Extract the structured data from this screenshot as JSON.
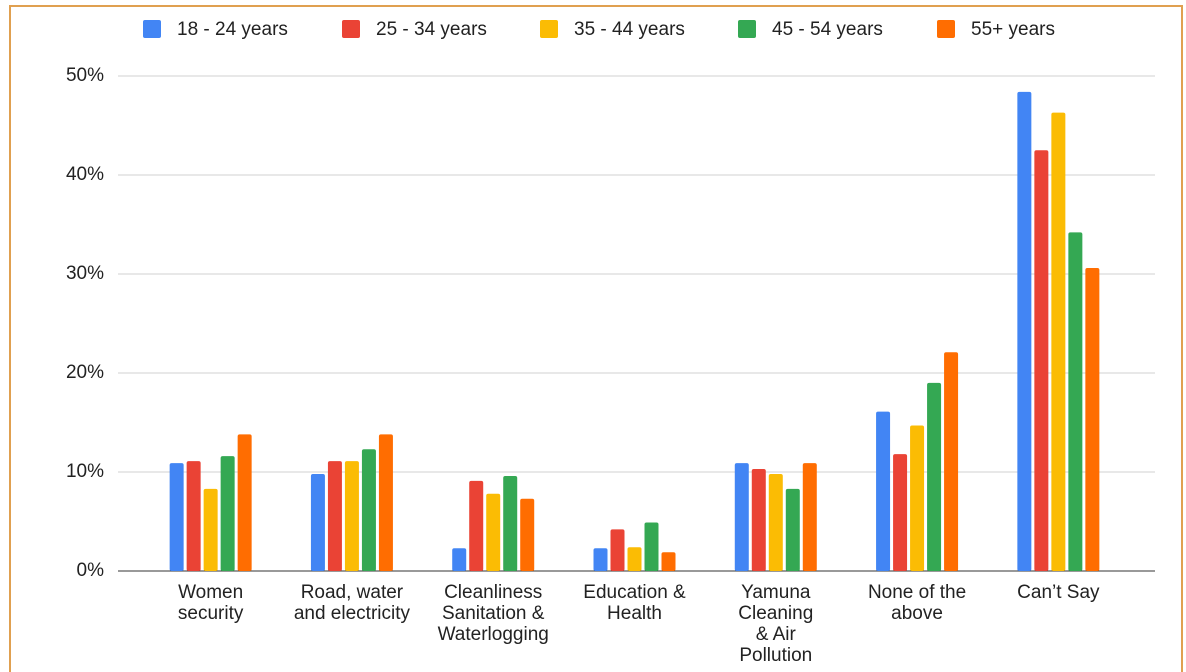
{
  "chart_data": {
    "type": "bar",
    "categories": [
      "Women security",
      "Road, water and electricity",
      "Cleanliness Sanitation & Waterlogging",
      "Education & Health",
      "Yamuna Cleaning & Air Pollution",
      "None of the above",
      "Can’t Say"
    ],
    "series": [
      {
        "name": "18 - 24 years",
        "color": "#4285f4",
        "values": [
          10.9,
          9.8,
          2.3,
          2.3,
          10.9,
          16.1,
          48.4
        ]
      },
      {
        "name": "25 - 34 years",
        "color": "#ea4335",
        "values": [
          11.1,
          11.1,
          9.1,
          4.2,
          10.3,
          11.8,
          42.5
        ]
      },
      {
        "name": "35 - 44 years",
        "color": "#fbbc04",
        "values": [
          8.3,
          11.1,
          7.8,
          2.4,
          9.8,
          14.7,
          46.3
        ]
      },
      {
        "name": "45 - 54 years",
        "color": "#34a853",
        "values": [
          11.6,
          12.3,
          9.6,
          4.9,
          8.3,
          19.0,
          34.2
        ]
      },
      {
        "name": "55+ years",
        "color": "#ff6d01",
        "values": [
          13.8,
          13.8,
          7.3,
          1.9,
          10.9,
          22.1,
          30.6
        ]
      }
    ],
    "ylim": [
      0,
      50
    ],
    "yticks": [
      {
        "value": 0,
        "label": "0%"
      },
      {
        "value": 10,
        "label": "10%"
      },
      {
        "value": 20,
        "label": "20%"
      },
      {
        "value": 30,
        "label": "30%"
      },
      {
        "value": 40,
        "label": "40%"
      },
      {
        "value": 50,
        "label": "50%"
      }
    ],
    "grid": true,
    "legend": "top"
  }
}
